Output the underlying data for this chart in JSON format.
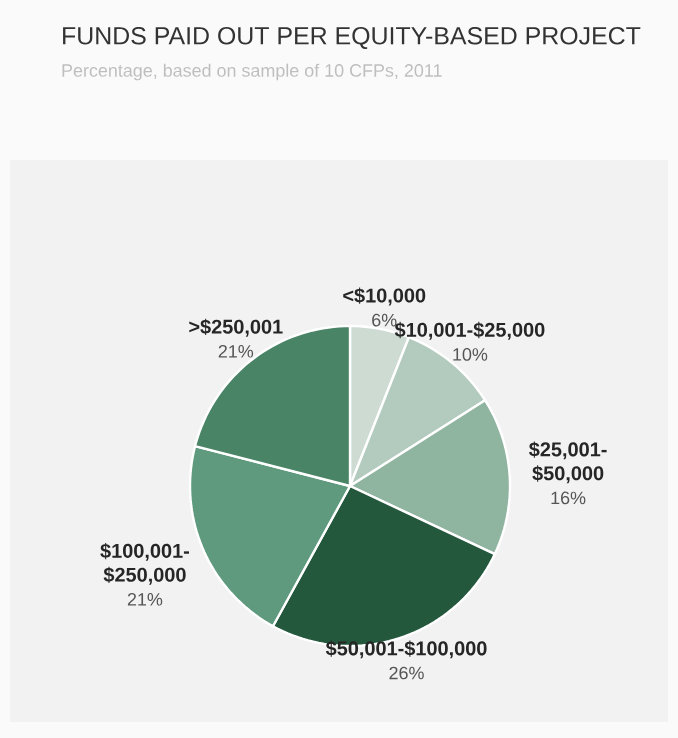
{
  "chart_data": {
    "type": "pie",
    "title": "FUNDS PAID OUT PER EQUITY-BASED PROJECT",
    "subtitle": "Percentage, based on sample of 10 CFPs, 2011",
    "categories": [
      "<$10,000",
      "$10,001-$25,000",
      "$25,001-$50,000",
      "$50,001-$100,000",
      "$100,001-$250,000",
      ">$250,001"
    ],
    "values": [
      6,
      10,
      16,
      26,
      21,
      21
    ],
    "value_labels": [
      "6%",
      "10%",
      "16%",
      "26%",
      "21%",
      "21%"
    ],
    "colors": [
      "#cddbd3",
      "#b3cbbe",
      "#8fb4a0",
      "#24583d",
      "#5f9a7e",
      "#4a8466"
    ]
  }
}
